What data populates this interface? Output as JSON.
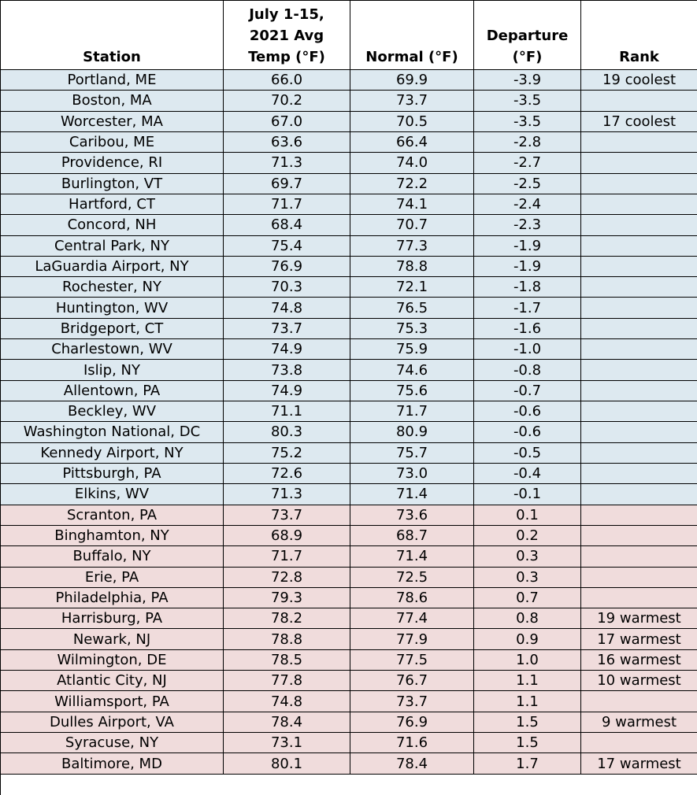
{
  "table": {
    "header": [
      [
        "Station"
      ],
      [
        "July 1-15,",
        "2021 Avg",
        "Temp (°F)"
      ],
      [
        "Normal (°F)"
      ],
      [
        "Departure",
        "(°F)"
      ],
      [
        "Rank"
      ]
    ],
    "rows": [
      [
        "Portland, ME",
        "66.0",
        "69.9",
        "-3.9",
        "19 coolest"
      ],
      [
        "Boston, MA",
        "70.2",
        "73.7",
        "-3.5",
        null
      ],
      [
        "Worcester, MA",
        "67.0",
        "70.5",
        "-3.5",
        "17 coolest"
      ],
      [
        "Caribou, ME",
        "63.6",
        "66.4",
        "-2.8",
        null
      ],
      [
        "Providence, RI",
        "71.3",
        "74.0",
        "-2.7",
        null
      ],
      [
        "Burlington, VT",
        "69.7",
        "72.2",
        "-2.5",
        null
      ],
      [
        "Hartford, CT",
        "71.7",
        "74.1",
        "-2.4",
        null
      ],
      [
        "Concord, NH",
        "68.4",
        "70.7",
        "-2.3",
        null
      ],
      [
        "Central Park, NY",
        "75.4",
        "77.3",
        "-1.9",
        null
      ],
      [
        "LaGuardia Airport, NY",
        "76.9",
        "78.8",
        "-1.9",
        null
      ],
      [
        "Rochester, NY",
        "70.3",
        "72.1",
        "-1.8",
        null
      ],
      [
        "Huntington, WV",
        "74.8",
        "76.5",
        "-1.7",
        null
      ],
      [
        "Bridgeport, CT",
        "73.7",
        "75.3",
        "-1.6",
        null
      ],
      [
        "Charlestown, WV",
        "74.9",
        "75.9",
        "-1.0",
        null
      ],
      [
        "Islip, NY",
        "73.8",
        "74.6",
        "-0.8",
        null
      ],
      [
        "Allentown, PA",
        "74.9",
        "75.6",
        "-0.7",
        null
      ],
      [
        "Beckley, WV",
        "71.1",
        "71.7",
        "-0.6",
        null
      ],
      [
        "Washington National, DC",
        "80.3",
        "80.9",
        "-0.6",
        null
      ],
      [
        "Kennedy Airport, NY",
        "75.2",
        "75.7",
        "-0.5",
        null
      ],
      [
        "Pittsburgh, PA",
        "72.6",
        "73.0",
        "-0.4",
        null
      ],
      [
        "Elkins, WV",
        "71.3",
        "71.4",
        "-0.1",
        null
      ],
      [
        "Scranton, PA",
        "73.7",
        "73.6",
        "0.1",
        null
      ],
      [
        "Binghamton, NY",
        "68.9",
        "68.7",
        "0.2",
        null
      ],
      [
        "Buffalo, NY",
        "71.7",
        "71.4",
        "0.3",
        null
      ],
      [
        "Erie, PA",
        "72.8",
        "72.5",
        "0.3",
        null
      ],
      [
        "Philadelphia, PA",
        "79.3",
        "78.6",
        "0.7",
        null
      ],
      [
        "Harrisburg, PA",
        "78.2",
        "77.4",
        "0.8",
        "19 warmest"
      ],
      [
        "Newark, NJ",
        "78.8",
        "77.9",
        "0.9",
        "17 warmest"
      ],
      [
        "Wilmington, DE",
        "78.5",
        "77.5",
        "1.0",
        "16 warmest"
      ],
      [
        "Atlantic City, NJ",
        "77.8",
        "76.7",
        "1.1",
        "10 warmest"
      ],
      [
        "Williamsport, PA",
        "74.8",
        "73.7",
        "1.1",
        null
      ],
      [
        "Dulles Airport, VA",
        "78.4",
        "76.9",
        "1.5",
        "9 warmest"
      ],
      [
        "Syracuse, NY",
        "73.1",
        "71.6",
        "1.5",
        null
      ],
      [
        "Baltimore, MD",
        "80.1",
        "78.4",
        "1.7",
        "17 warmest"
      ]
    ]
  }
}
